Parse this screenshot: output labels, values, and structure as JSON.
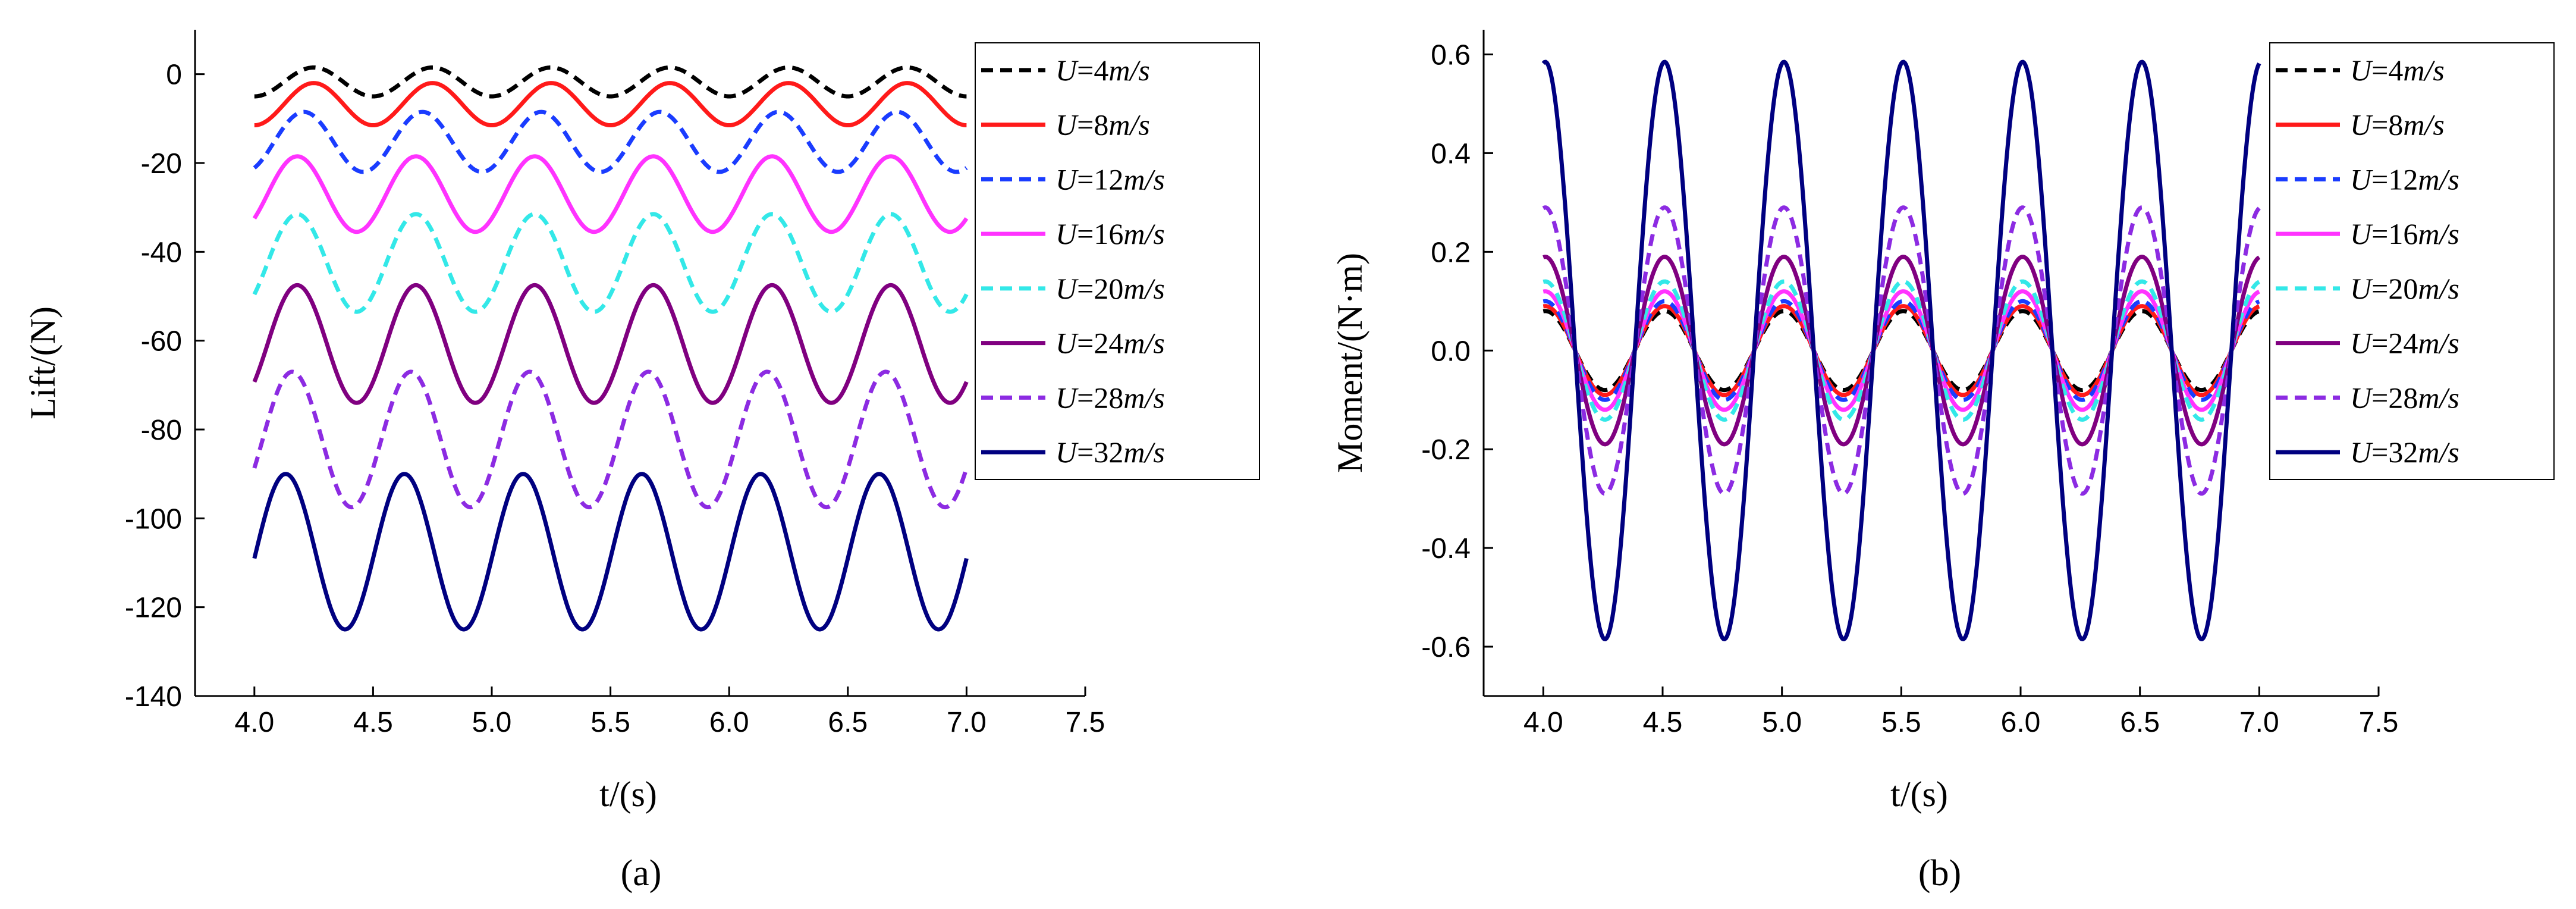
{
  "chart_data": [
    {
      "type": "line",
      "panel_label": "(a)",
      "panel_letter": "a",
      "xlabel": "t/(s)",
      "ylabel": "Lift/(N)",
      "xlim": [
        3.75,
        7.5
      ],
      "ylim": [
        -140,
        10
      ],
      "xticks": [
        4.0,
        4.5,
        5.0,
        5.5,
        6.0,
        6.5,
        7.0,
        7.5
      ],
      "xtick_labels": [
        "4.0",
        "4.5",
        "5.0",
        "5.5",
        "6.0",
        "6.5",
        "7.0",
        "7.5"
      ],
      "yticks": [
        0,
        -20,
        -40,
        -60,
        -80,
        -100,
        -120,
        -140
      ],
      "ytick_labels": [
        "0",
        "-20",
        "-40",
        "-60",
        "-80",
        "-100",
        "-120",
        "-140"
      ],
      "x_range": [
        4.0,
        7.0
      ],
      "frequency_hz": 2,
      "legend_position": "right",
      "series": [
        {
          "name": "U=4m/s",
          "speed": "4",
          "color": "#000000",
          "dash": true,
          "min": -5.0,
          "max": 1.5,
          "phase_deg": 270
        },
        {
          "name": "U=8m/s",
          "speed": "8",
          "color": "#ff1a1a",
          "dash": false,
          "min": -11.5,
          "max": -2.0,
          "phase_deg": 270
        },
        {
          "name": "U=12m/s",
          "speed": "12",
          "color": "#1a3cff",
          "dash": true,
          "min": -22.0,
          "max": -8.5,
          "phase_deg": 300
        },
        {
          "name": "U=16m/s",
          "speed": "16",
          "color": "#ff33ff",
          "dash": false,
          "min": -35.5,
          "max": -18.5,
          "phase_deg": 320
        },
        {
          "name": "U=20m/s",
          "speed": "20",
          "color": "#33e8e8",
          "dash": true,
          "min": -53.5,
          "max": -31.5,
          "phase_deg": 320
        },
        {
          "name": "U=24m/s",
          "speed": "24",
          "color": "#800080",
          "dash": false,
          "min": -74.0,
          "max": -47.5,
          "phase_deg": 320
        },
        {
          "name": "U=28m/s",
          "speed": "28",
          "color": "#8c2be2",
          "dash": true,
          "min": -97.5,
          "max": -67.0,
          "phase_deg": 335
        },
        {
          "name": "U=32m/s",
          "speed": "32",
          "color": "#000080",
          "dash": false,
          "min": -125.0,
          "max": -90.0,
          "phase_deg": 355
        }
      ]
    },
    {
      "type": "line",
      "panel_label": "(b)",
      "panel_letter": "b",
      "xlabel": "t/(s)",
      "ylabel": "Moment/(N·m)",
      "xlim": [
        3.75,
        7.5
      ],
      "ylim": [
        -0.7,
        0.65
      ],
      "xticks": [
        4.0,
        4.5,
        5.0,
        5.5,
        6.0,
        6.5,
        7.0,
        7.5
      ],
      "xtick_labels": [
        "4.0",
        "4.5",
        "5.0",
        "5.5",
        "6.0",
        "6.5",
        "7.0",
        "7.5"
      ],
      "yticks": [
        0.6,
        0.4,
        0.2,
        0.0,
        -0.2,
        -0.4,
        -0.6
      ],
      "ytick_labels": [
        "0.6",
        "0.4",
        "0.2",
        "0.0",
        "-0.2",
        "-0.4",
        "-0.6"
      ],
      "x_range": [
        4.0,
        7.0
      ],
      "frequency_hz": 2,
      "legend_position": "right",
      "series": [
        {
          "name": "U=4m/s",
          "speed": "4",
          "color": "#000000",
          "dash": true,
          "amp": 0.08,
          "phase_deg": 84
        },
        {
          "name": "U=8m/s",
          "speed": "8",
          "color": "#ff1a1a",
          "dash": false,
          "amp": 0.09,
          "phase_deg": 84
        },
        {
          "name": "U=12m/s",
          "speed": "12",
          "color": "#1a3cff",
          "dash": true,
          "amp": 0.1,
          "phase_deg": 84
        },
        {
          "name": "U=16m/s",
          "speed": "16",
          "color": "#ff33ff",
          "dash": false,
          "amp": 0.12,
          "phase_deg": 84
        },
        {
          "name": "U=20m/s",
          "speed": "20",
          "color": "#33e8e8",
          "dash": true,
          "amp": 0.14,
          "phase_deg": 84
        },
        {
          "name": "U=24m/s",
          "speed": "24",
          "color": "#800080",
          "dash": false,
          "amp": 0.19,
          "phase_deg": 84
        },
        {
          "name": "U=28m/s",
          "speed": "28",
          "color": "#8c2be2",
          "dash": true,
          "amp": 0.29,
          "phase_deg": 84
        },
        {
          "name": "U=32m/s",
          "speed": "32",
          "color": "#000080",
          "dash": false,
          "amp": 0.585,
          "phase_deg": 84
        }
      ]
    }
  ]
}
